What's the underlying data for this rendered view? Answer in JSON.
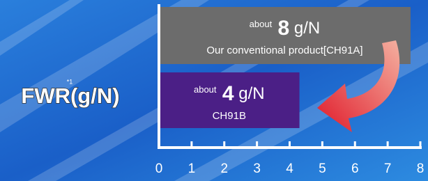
{
  "chart_data": {
    "type": "bar",
    "orientation": "horizontal",
    "y_label": "FWR(g/N)",
    "y_label_note": "*1",
    "categories": [
      "Our conventional product[CH91A]",
      "CH91B"
    ],
    "values": [
      7.7,
      4.3
    ],
    "value_labels": [
      "about 8 g/N",
      "about 4 g/N"
    ],
    "colors": [
      "#6c6c6c",
      "#4b1f86"
    ],
    "xlim": [
      0,
      8
    ],
    "xticks": [
      0,
      1,
      2,
      3,
      4,
      5,
      6,
      7,
      8
    ]
  }
}
